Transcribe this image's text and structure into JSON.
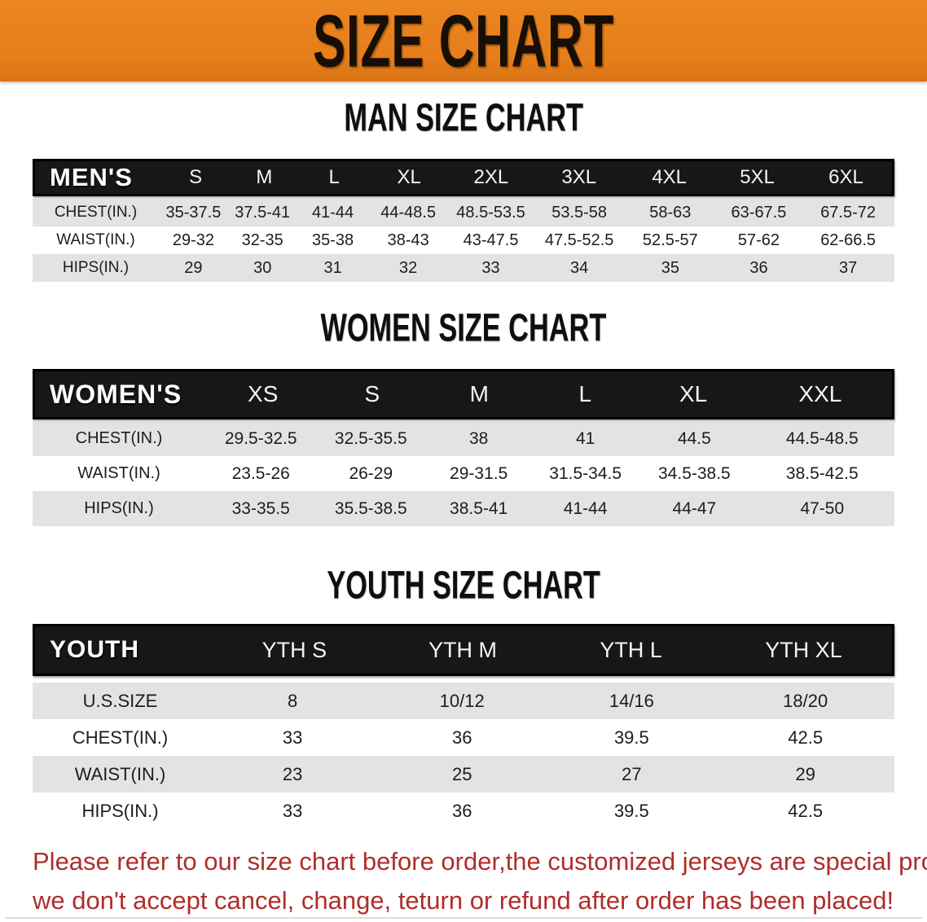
{
  "banner": {
    "title": "SIZE CHART",
    "bg_color": "#e67e1b",
    "text_color": "#170f05"
  },
  "colors": {
    "header_bg": "#171717",
    "row_gray": "#e3e3e3",
    "row_white": "#ffffff",
    "disclaimer": "#ae2e2b"
  },
  "sections": [
    {
      "heading": "MAN SIZE CHART",
      "table": {
        "label": "MEN'S",
        "columns": [
          "S",
          "M",
          "L",
          "XL",
          "2XL",
          "3XL",
          "4XL",
          "5XL",
          "6XL"
        ],
        "rows": [
          {
            "label": "CHEST(IN.)",
            "values": [
              "35-37.5",
              "37.5-41",
              "41-44",
              "44-48.5",
              "48.5-53.5",
              "53.5-58",
              "58-63",
              "63-67.5",
              "67.5-72"
            ]
          },
          {
            "label": "WAIST(IN.)",
            "values": [
              "29-32",
              "32-35",
              "35-38",
              "38-43",
              "43-47.5",
              "47.5-52.5",
              "52.5-57",
              "57-62",
              "62-66.5"
            ]
          },
          {
            "label": "HIPS(IN.)",
            "values": [
              "29",
              "30",
              "31",
              "32",
              "33",
              "34",
              "35",
              "36",
              "37"
            ]
          }
        ]
      }
    },
    {
      "heading": "WOMEN SIZE CHART",
      "table": {
        "label": "WOMEN'S",
        "columns": [
          "XS",
          "S",
          "M",
          "L",
          "XL",
          "XXL"
        ],
        "rows": [
          {
            "label": "CHEST(IN.)",
            "values": [
              "29.5-32.5",
              "32.5-35.5",
              "38",
              "41",
              "44.5",
              "44.5-48.5"
            ]
          },
          {
            "label": "WAIST(IN.)",
            "values": [
              "23.5-26",
              "26-29",
              "29-31.5",
              "31.5-34.5",
              "34.5-38.5",
              "38.5-42.5"
            ]
          },
          {
            "label": "HIPS(IN.)",
            "values": [
              "33-35.5",
              "35.5-38.5",
              "38.5-41",
              "41-44",
              "44-47",
              "47-50"
            ]
          }
        ]
      }
    },
    {
      "heading": "YOUTH SIZE CHART",
      "table": {
        "label": "YOUTH",
        "columns": [
          "YTH S",
          "YTH M",
          "YTH L",
          "YTH XL"
        ],
        "rows": [
          {
            "label": "U.S.SIZE",
            "values": [
              "8",
              "10/12",
              "14/16",
              "18/20"
            ]
          },
          {
            "label": "CHEST(IN.)",
            "values": [
              "33",
              "36",
              "39.5",
              "42.5"
            ]
          },
          {
            "label": "WAIST(IN.)",
            "values": [
              "23",
              "25",
              "27",
              "29"
            ]
          },
          {
            "label": "HIPS(IN.)",
            "values": [
              "33",
              "36",
              "39.5",
              "42.5"
            ]
          }
        ]
      }
    }
  ],
  "disclaimer": {
    "line1": "Please refer to our size chart before order,the customized jerseys are special products,",
    "line2": "we don't accept cancel, change, teturn or refund after order has been placed!"
  }
}
